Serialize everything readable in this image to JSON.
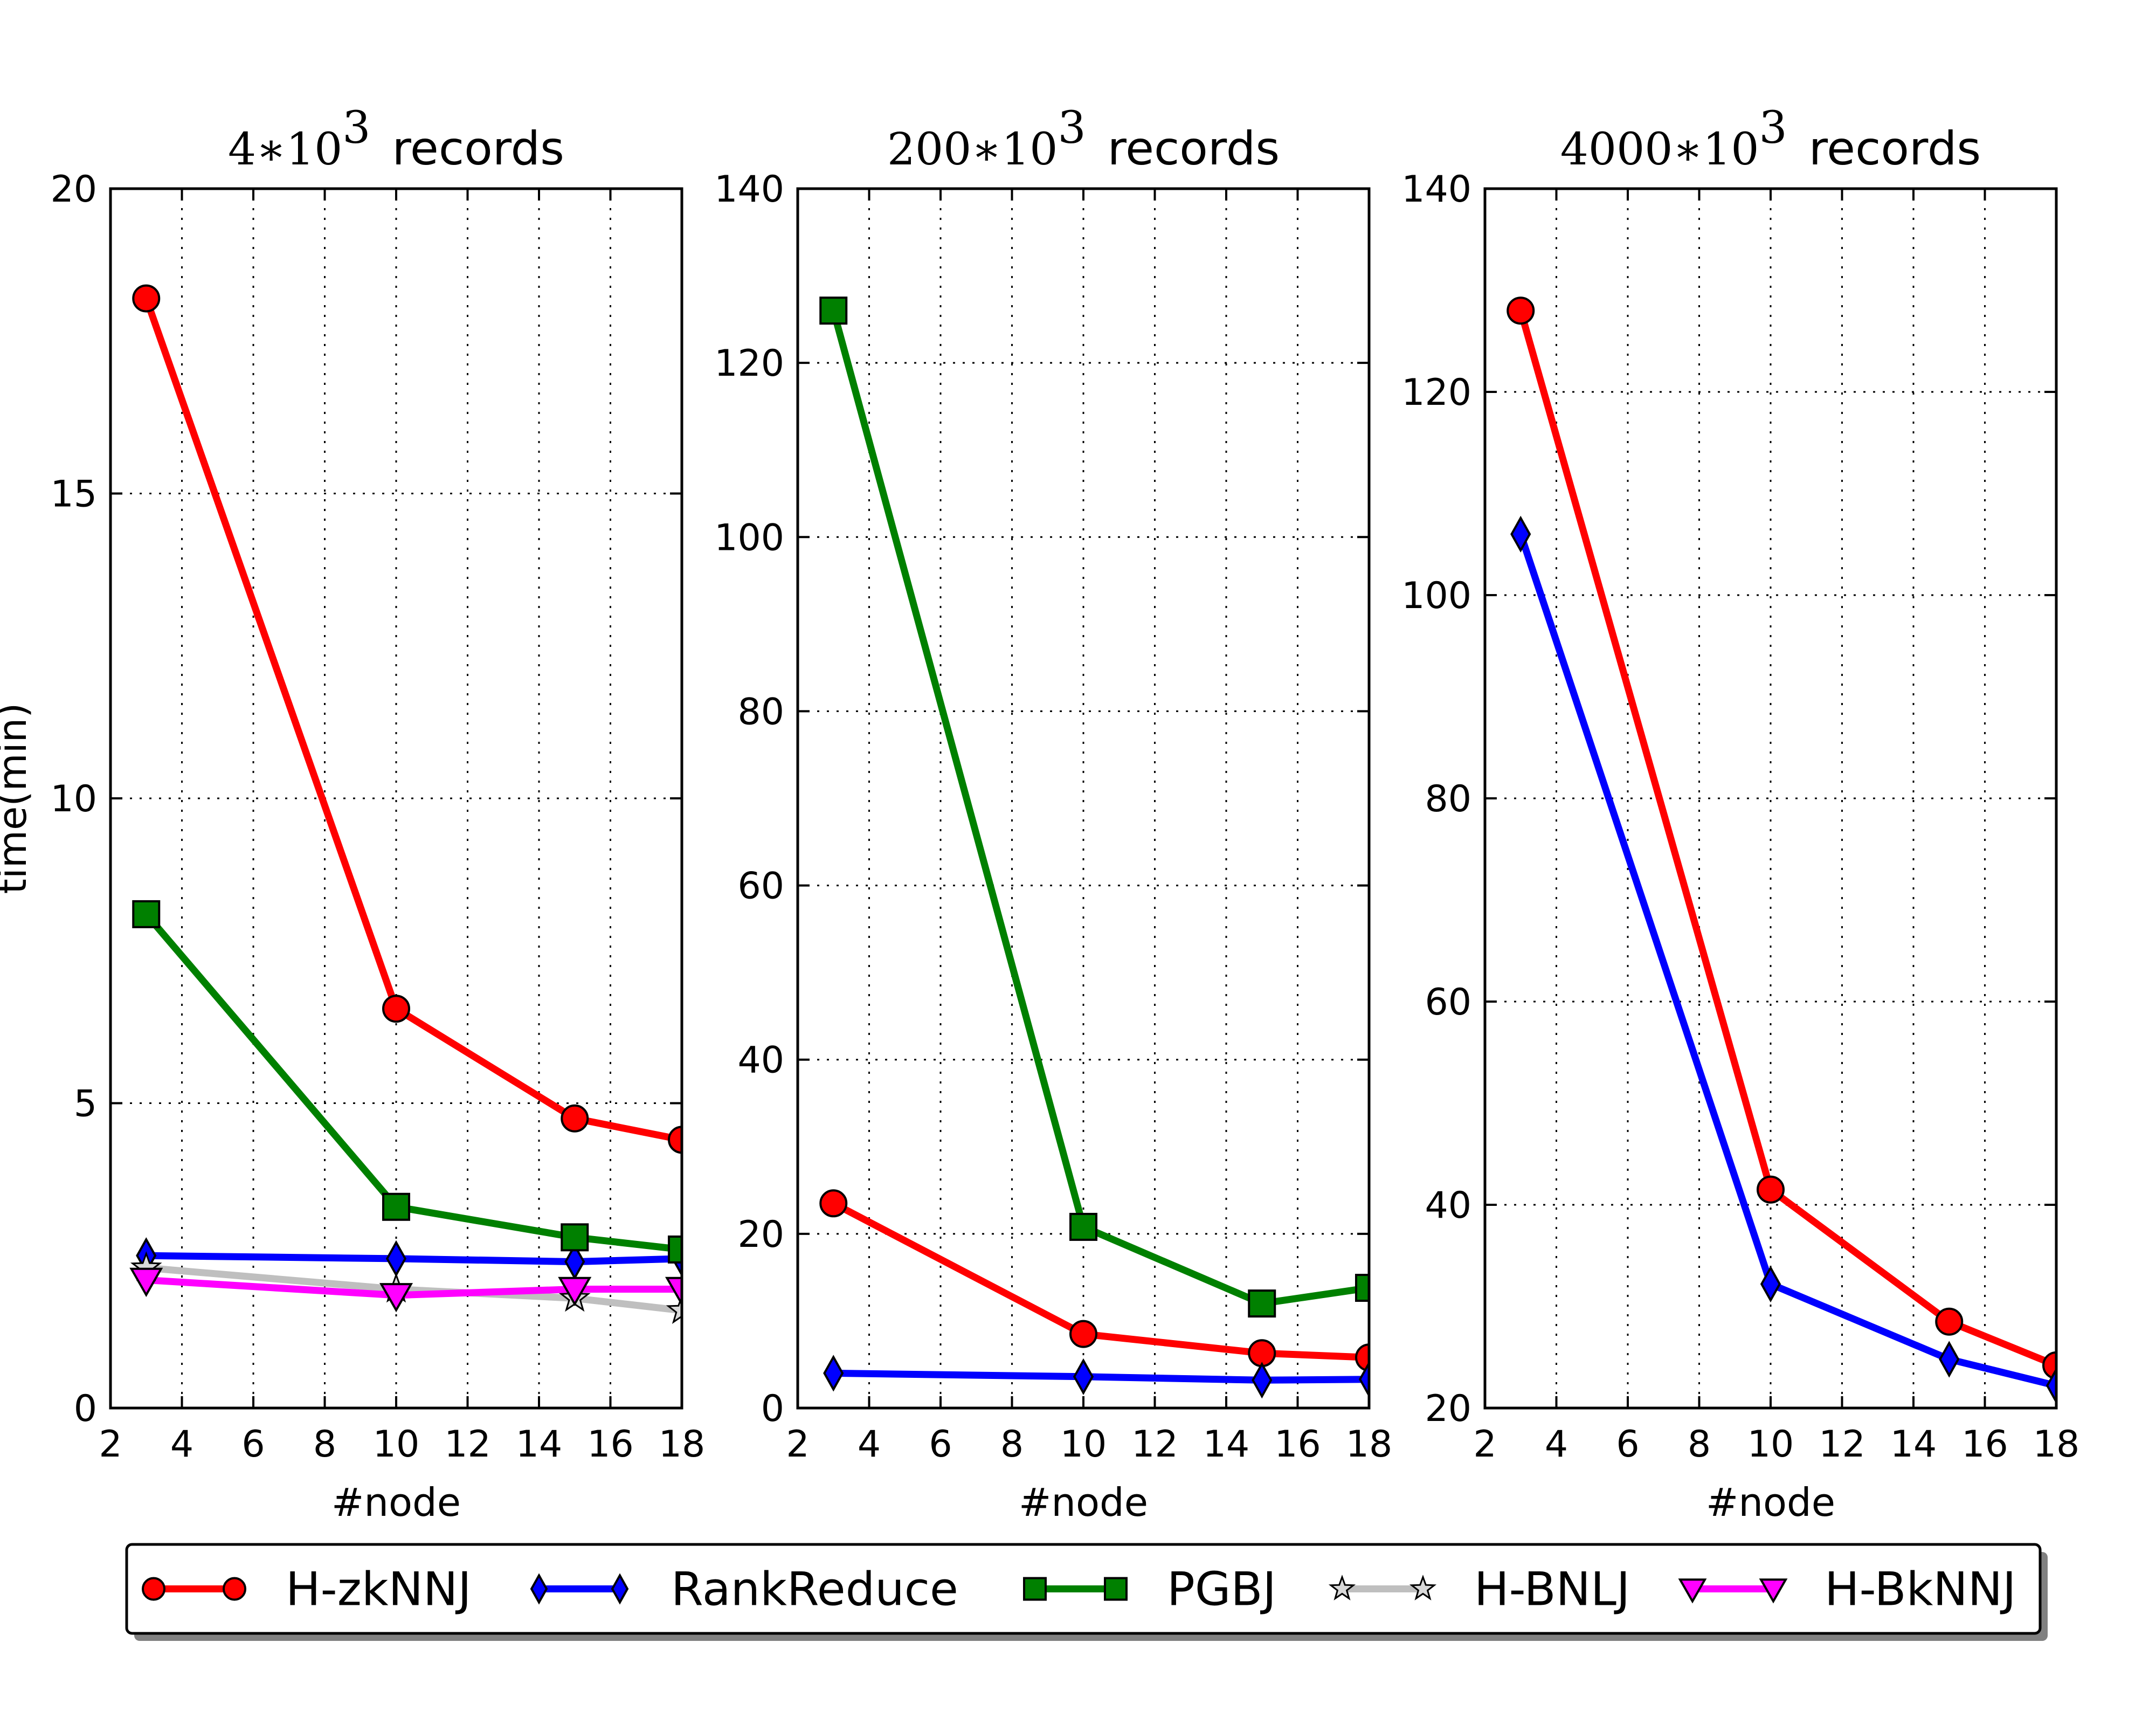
{
  "chart_data": [
    {
      "type": "line",
      "title_math": "4∗10",
      "title_exp": "3",
      "title_text": "records",
      "xlabel": "#node",
      "ylabel": "time(min)",
      "xlim": [
        2,
        18
      ],
      "ylim": [
        0,
        20
      ],
      "xticks": [
        2,
        4,
        6,
        8,
        10,
        12,
        14,
        16,
        18
      ],
      "yticks": [
        0,
        5,
        10,
        15,
        20
      ],
      "grid": true,
      "series": [
        {
          "name": "H-zkNNJ",
          "x": [
            3,
            10,
            15,
            18
          ],
          "y": [
            18.2,
            6.55,
            4.75,
            4.4
          ]
        },
        {
          "name": "RankReduce",
          "x": [
            3,
            10,
            15,
            18
          ],
          "y": [
            2.5,
            2.45,
            2.4,
            2.45
          ]
        },
        {
          "name": "PGBJ",
          "x": [
            3,
            10,
            15,
            18
          ],
          "y": [
            8.1,
            3.3,
            2.8,
            2.6
          ]
        },
        {
          "name": "H-BNLJ",
          "x": [
            3,
            10,
            15,
            18
          ],
          "y": [
            2.3,
            1.95,
            1.8,
            1.6
          ]
        },
        {
          "name": "H-BkNNJ",
          "x": [
            3,
            10,
            15,
            18
          ],
          "y": [
            2.1,
            1.85,
            1.95,
            1.95
          ]
        }
      ]
    },
    {
      "type": "line",
      "title_math": "200∗10",
      "title_exp": "3",
      "title_text": "records",
      "xlabel": "#node",
      "ylabel": "",
      "xlim": [
        2,
        18
      ],
      "ylim": [
        0,
        140
      ],
      "xticks": [
        2,
        4,
        6,
        8,
        10,
        12,
        14,
        16,
        18
      ],
      "yticks": [
        0,
        20,
        40,
        60,
        80,
        100,
        120,
        140
      ],
      "grid": true,
      "series": [
        {
          "name": "H-zkNNJ",
          "x": [
            3,
            10,
            15,
            18
          ],
          "y": [
            23.5,
            8.5,
            6.3,
            5.8
          ]
        },
        {
          "name": "RankReduce",
          "x": [
            3,
            10,
            15,
            18
          ],
          "y": [
            4.0,
            3.6,
            3.2,
            3.3
          ]
        },
        {
          "name": "PGBJ",
          "x": [
            3,
            10,
            15,
            18
          ],
          "y": [
            126,
            20.8,
            12.0,
            13.8
          ]
        }
      ]
    },
    {
      "type": "line",
      "title_math": "4000∗10",
      "title_exp": "3",
      "title_text": "records",
      "xlabel": "#node",
      "ylabel": "",
      "xlim": [
        2,
        18
      ],
      "ylim": [
        20,
        140
      ],
      "xticks": [
        2,
        4,
        6,
        8,
        10,
        12,
        14,
        16,
        18
      ],
      "yticks": [
        20,
        40,
        60,
        80,
        100,
        120,
        140
      ],
      "grid": true,
      "series": [
        {
          "name": "H-zkNNJ",
          "x": [
            3,
            10,
            15,
            18
          ],
          "y": [
            128,
            41.5,
            28.5,
            24.2
          ]
        },
        {
          "name": "RankReduce",
          "x": [
            3,
            10,
            15,
            18
          ],
          "y": [
            106,
            32.2,
            24.8,
            22.2
          ]
        }
      ]
    }
  ],
  "legend": {
    "placement": "bottom",
    "entries": [
      {
        "name": "H-zkNNJ",
        "color": "#ff0000",
        "marker": "circle"
      },
      {
        "name": "RankReduce",
        "color": "#0000ff",
        "marker": "diamond"
      },
      {
        "name": "PGBJ",
        "color": "#008000",
        "marker": "square"
      },
      {
        "name": "H-BNLJ",
        "color": "#bfbfbf",
        "marker": "star"
      },
      {
        "name": "H-BkNNJ",
        "color": "#ff00ff",
        "marker": "triangle-down"
      }
    ]
  },
  "styles": {
    "H-zkNNJ": {
      "color": "#ff0000",
      "marker": "circle"
    },
    "RankReduce": {
      "color": "#0000ff",
      "marker": "diamond"
    },
    "PGBJ": {
      "color": "#008000",
      "marker": "square"
    },
    "H-BNLJ": {
      "color": "#bfbfbf",
      "marker": "star"
    },
    "H-BkNNJ": {
      "color": "#ff00ff",
      "marker": "triangle-down"
    }
  }
}
